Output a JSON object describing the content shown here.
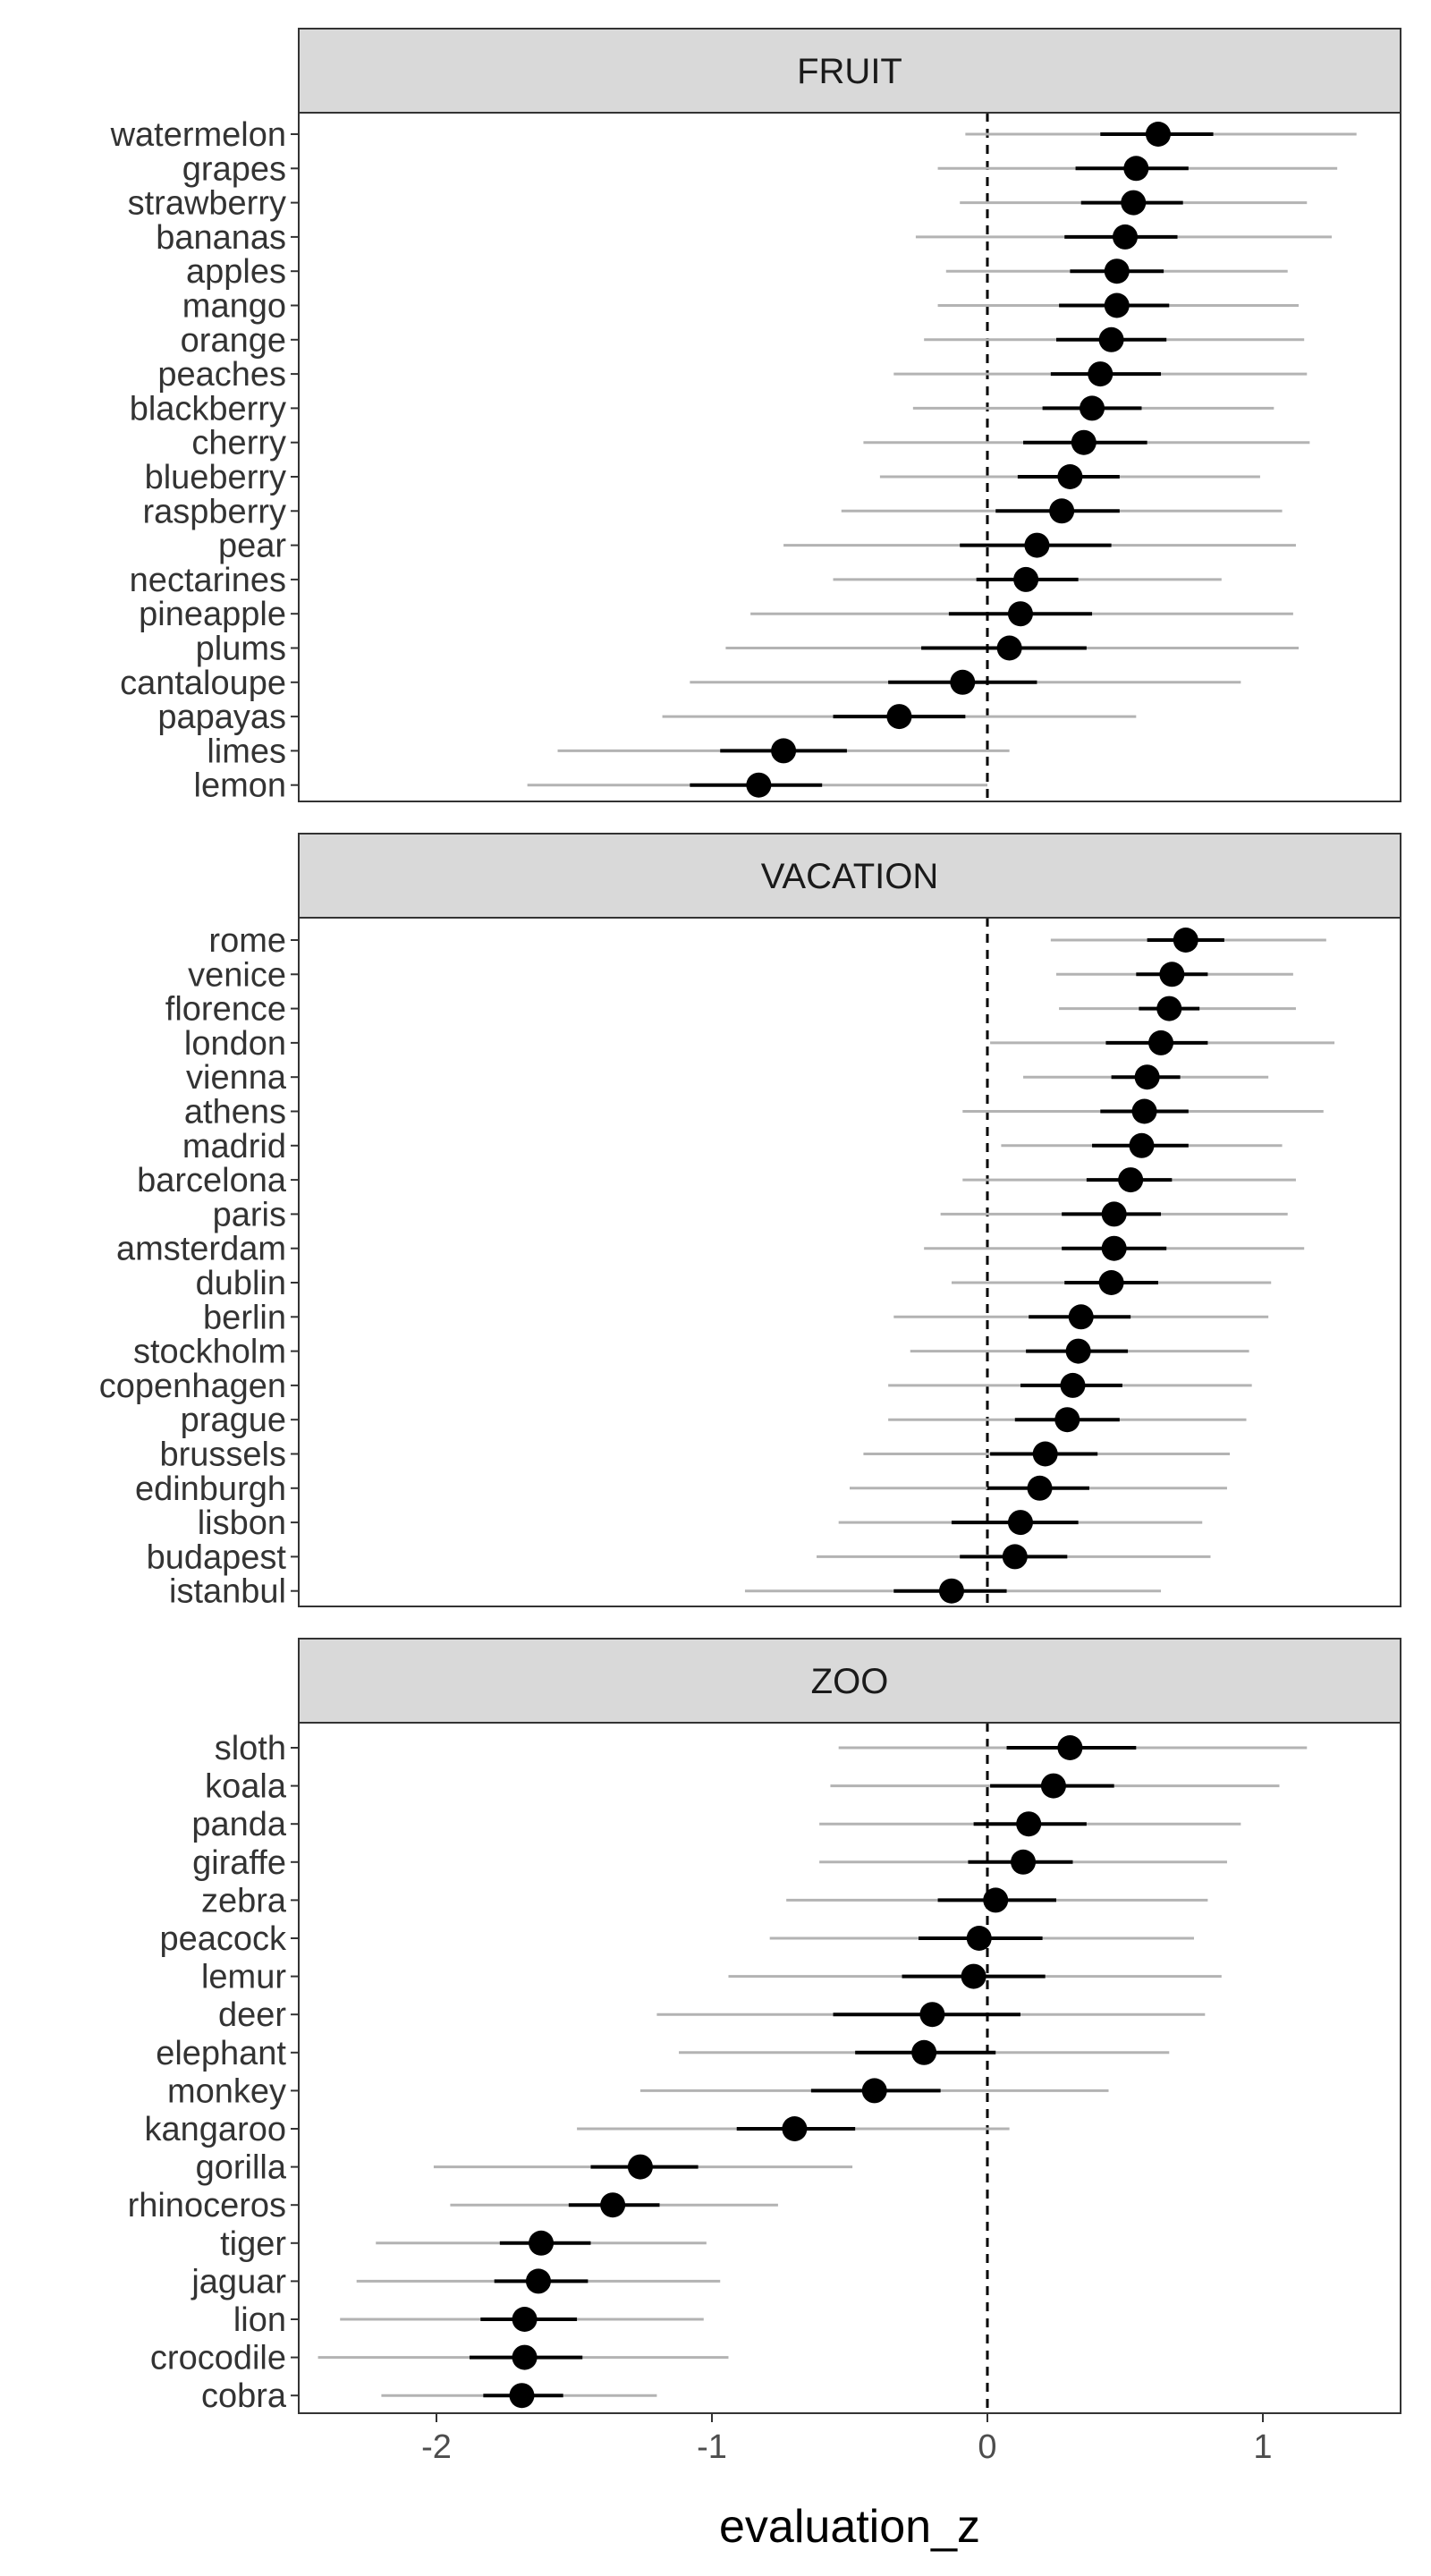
{
  "chart_data": {
    "type": "scatter",
    "subtype": "faceted-pointrange",
    "xlabel": "evaluation_z",
    "xlim": [
      -2.5,
      1.5
    ],
    "x_ticks": [
      -2,
      -1,
      0,
      1
    ],
    "x_tick_labels": [
      "-2",
      "-1",
      "0",
      "1"
    ],
    "reference_line_x": 0,
    "colors": {
      "point": "#000000",
      "inner_interval": "#000000",
      "outer_interval": "#b3b3b3",
      "strip_fill": "#d9d9d9",
      "panel_border": "#333333",
      "reference_line": "#000000"
    },
    "facets": [
      {
        "title": "FRUIT",
        "categories": [
          "watermelon",
          "grapes",
          "strawberry",
          "bananas",
          "apples",
          "mango",
          "orange",
          "peaches",
          "blackberry",
          "cherry",
          "blueberry",
          "raspberry",
          "pear",
          "nectarines",
          "pineapple",
          "plums",
          "cantaloupe",
          "papayas",
          "limes",
          "lemon"
        ],
        "estimate": [
          0.62,
          0.54,
          0.53,
          0.5,
          0.47,
          0.47,
          0.45,
          0.41,
          0.38,
          0.35,
          0.3,
          0.27,
          0.18,
          0.14,
          0.12,
          0.08,
          -0.09,
          -0.32,
          -0.74,
          -0.83
        ],
        "inner_low": [
          0.41,
          0.32,
          0.34,
          0.28,
          0.3,
          0.26,
          0.25,
          0.23,
          0.2,
          0.13,
          0.11,
          0.03,
          -0.1,
          -0.04,
          -0.14,
          -0.24,
          -0.36,
          -0.56,
          -0.97,
          -1.08
        ],
        "inner_high": [
          0.82,
          0.73,
          0.71,
          0.69,
          0.64,
          0.66,
          0.65,
          0.63,
          0.56,
          0.58,
          0.48,
          0.48,
          0.45,
          0.33,
          0.38,
          0.36,
          0.18,
          -0.08,
          -0.51,
          -0.6
        ],
        "outer_low": [
          -0.08,
          -0.18,
          -0.1,
          -0.26,
          -0.15,
          -0.18,
          -0.23,
          -0.34,
          -0.27,
          -0.45,
          -0.39,
          -0.53,
          -0.74,
          -0.56,
          -0.86,
          -0.95,
          -1.08,
          -1.18,
          -1.56,
          -1.67
        ],
        "outer_high": [
          1.34,
          1.27,
          1.16,
          1.25,
          1.09,
          1.13,
          1.15,
          1.16,
          1.04,
          1.17,
          0.99,
          1.07,
          1.12,
          0.85,
          1.11,
          1.13,
          0.92,
          0.54,
          0.08,
          0.0
        ]
      },
      {
        "title": "VACATION",
        "categories": [
          "rome",
          "venice",
          "florence",
          "london",
          "vienna",
          "athens",
          "madrid",
          "barcelona",
          "paris",
          "amsterdam",
          "dublin",
          "berlin",
          "stockholm",
          "copenhagen",
          "prague",
          "brussels",
          "edinburgh",
          "lisbon",
          "budapest",
          "istanbul"
        ],
        "estimate": [
          0.72,
          0.67,
          0.66,
          0.63,
          0.58,
          0.57,
          0.56,
          0.52,
          0.46,
          0.46,
          0.45,
          0.34,
          0.33,
          0.31,
          0.29,
          0.21,
          0.19,
          0.12,
          0.1,
          -0.13
        ],
        "inner_low": [
          0.58,
          0.54,
          0.55,
          0.43,
          0.45,
          0.41,
          0.38,
          0.36,
          0.27,
          0.27,
          0.28,
          0.15,
          0.14,
          0.12,
          0.1,
          0.01,
          0.0,
          -0.13,
          -0.1,
          -0.34
        ],
        "inner_high": [
          0.86,
          0.8,
          0.77,
          0.8,
          0.7,
          0.73,
          0.73,
          0.67,
          0.63,
          0.65,
          0.62,
          0.52,
          0.51,
          0.49,
          0.48,
          0.4,
          0.37,
          0.33,
          0.29,
          0.07
        ],
        "outer_low": [
          0.23,
          0.25,
          0.26,
          0.01,
          0.13,
          -0.09,
          0.05,
          -0.09,
          -0.17,
          -0.23,
          -0.13,
          -0.34,
          -0.28,
          -0.36,
          -0.36,
          -0.45,
          -0.5,
          -0.54,
          -0.62,
          -0.88
        ],
        "outer_high": [
          1.23,
          1.11,
          1.12,
          1.26,
          1.02,
          1.22,
          1.07,
          1.12,
          1.09,
          1.15,
          1.03,
          1.02,
          0.95,
          0.96,
          0.94,
          0.88,
          0.87,
          0.78,
          0.81,
          0.63
        ]
      },
      {
        "title": "ZOO",
        "categories": [
          "sloth",
          "koala",
          "panda",
          "giraffe",
          "zebra",
          "peacock",
          "lemur",
          "deer",
          "elephant",
          "monkey",
          "kangaroo",
          "gorilla",
          "rhinoceros",
          "tiger",
          "jaguar",
          "lion",
          "crocodile",
          "cobra"
        ],
        "estimate": [
          0.3,
          0.24,
          0.15,
          0.13,
          0.03,
          -0.03,
          -0.05,
          -0.2,
          -0.23,
          -0.41,
          -0.7,
          -1.26,
          -1.36,
          -1.62,
          -1.63,
          -1.68,
          -1.68,
          -1.69
        ],
        "inner_low": [
          0.07,
          0.01,
          -0.05,
          -0.07,
          -0.18,
          -0.25,
          -0.31,
          -0.56,
          -0.48,
          -0.64,
          -0.91,
          -1.44,
          -1.52,
          -1.77,
          -1.79,
          -1.84,
          -1.88,
          -1.83
        ],
        "inner_high": [
          0.54,
          0.46,
          0.36,
          0.31,
          0.25,
          0.2,
          0.21,
          0.12,
          0.03,
          -0.17,
          -0.48,
          -1.05,
          -1.19,
          -1.44,
          -1.45,
          -1.49,
          -1.47,
          -1.54
        ],
        "outer_low": [
          -0.54,
          -0.57,
          -0.61,
          -0.61,
          -0.73,
          -0.79,
          -0.94,
          -1.2,
          -1.12,
          -1.26,
          -1.49,
          -2.01,
          -1.95,
          -2.22,
          -2.29,
          -2.35,
          -2.43,
          -2.2
        ],
        "outer_high": [
          1.16,
          1.06,
          0.92,
          0.87,
          0.8,
          0.75,
          0.85,
          0.79,
          0.66,
          0.44,
          0.08,
          -0.49,
          -0.76,
          -1.02,
          -0.97,
          -1.03,
          -0.94,
          -1.2
        ]
      }
    ]
  }
}
